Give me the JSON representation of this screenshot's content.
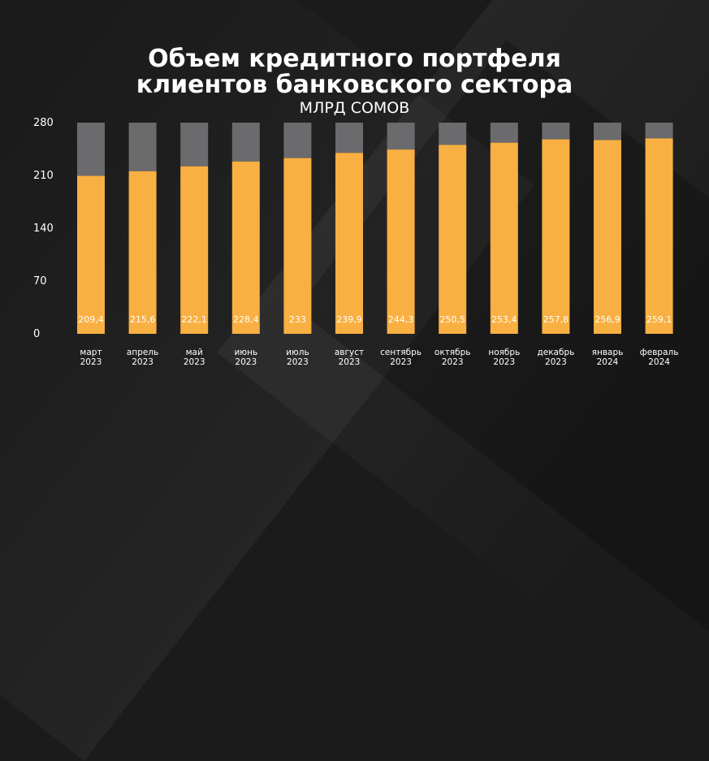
{
  "header": {
    "title_line1": "Объем кредитного портфеля",
    "title_line2": "клиентов банковского сектора",
    "subtitle": "МЛРД СОМОВ"
  },
  "colors": {
    "value_bar": "#f9b042",
    "remainder_bar": "#6b6b6d",
    "background": "#1b1b1b",
    "text": "#ffffff"
  },
  "chart_data": {
    "type": "bar",
    "stacked": true,
    "title": "Объем кредитного портфеля клиентов банковского сектора",
    "subtitle": "МЛРД СОМОВ",
    "categories": [
      [
        "март",
        "2023"
      ],
      [
        "апрель",
        "2023"
      ],
      [
        "май",
        "2023"
      ],
      [
        "июнь",
        "2023"
      ],
      [
        "июль",
        "2023"
      ],
      [
        "август",
        "2023"
      ],
      [
        "сентябрь",
        "2023"
      ],
      [
        "октябрь",
        "2023"
      ],
      [
        "ноябрь",
        "2023"
      ],
      [
        "декабрь",
        "2023"
      ],
      [
        "январь",
        "2024"
      ],
      [
        "февраль",
        "2024"
      ]
    ],
    "values": [
      209.4,
      215.6,
      222.1,
      228.4,
      233,
      239.9,
      244.3,
      250.5,
      253.4,
      257.8,
      256.9,
      259.1
    ],
    "value_labels": [
      "209,4",
      "215,6",
      "222,1",
      "228,4",
      "233",
      "239,9",
      "244,3",
      "250,5",
      "253,4",
      "257,8",
      "256,9",
      "259,1"
    ],
    "stack_total": 280,
    "ylim": [
      0,
      280
    ],
    "yticks": [
      0,
      70,
      140,
      210,
      280
    ],
    "grid": false,
    "legend": "none"
  }
}
